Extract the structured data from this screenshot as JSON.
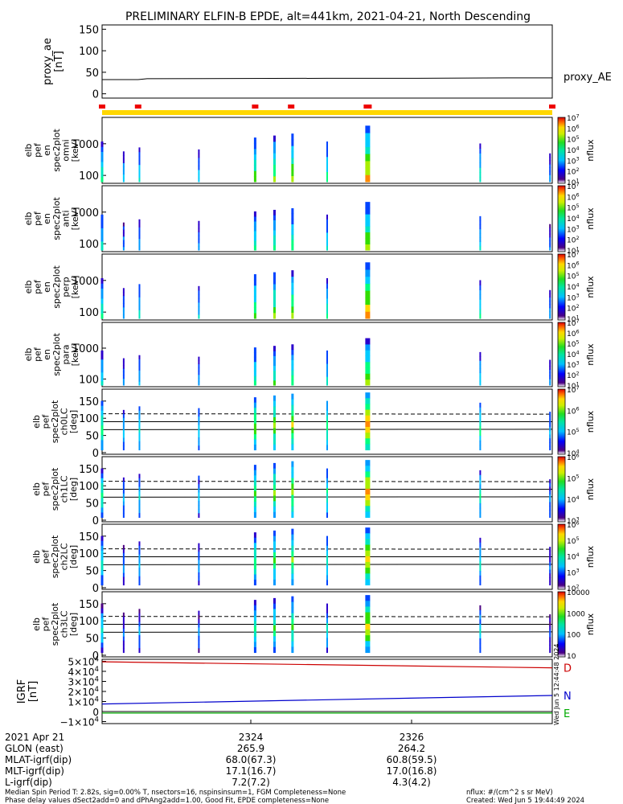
{
  "title": "PRELIMINARY ELFIN-B EPDE, alt=441km, 2021-04-21, North Descending",
  "colors": {
    "frame": "#000000",
    "flag_bar": "#ffd700",
    "flag_mark": "#ee0000",
    "grf_d": "#cc0000",
    "grf_n": "#0000cc",
    "grf_e": "#00aa00"
  },
  "chart_data": [
    {
      "type": "line",
      "panel": "proxy_ae",
      "ylabel": "proxy_ae [nT]",
      "yticks": [
        "150",
        "100",
        "50",
        "0"
      ],
      "ylim": [
        -10,
        160
      ],
      "legend": "proxy_AE",
      "x": [
        0,
        0.08,
        0.1,
        0.5,
        0.7,
        0.9,
        1.0
      ],
      "y": [
        33,
        33,
        35,
        36,
        36,
        37,
        37
      ]
    },
    {
      "type": "heatmap",
      "panel": "flags",
      "flag_marks": [
        0.0,
        0.08,
        0.34,
        0.42,
        0.59,
        1.0
      ]
    },
    {
      "type": "heatmap",
      "panel": "spec2plot_omni",
      "ylabel": [
        "elb",
        "pef",
        "en",
        "spec2plot",
        "omni",
        "[keV]"
      ],
      "yticks": [
        "1000",
        "100"
      ],
      "colorbar_label": "nflux",
      "colorbar_ticks": [
        "10^7",
        "10^6",
        "10^5",
        "10^4",
        "10^3",
        "10^2",
        "10^1"
      ]
    },
    {
      "type": "heatmap",
      "panel": "spec2plot_anti",
      "ylabel": [
        "elb",
        "pef",
        "en",
        "spec2plot",
        "anti",
        "[keV]"
      ],
      "yticks": [
        "1000",
        "100"
      ],
      "colorbar_label": "nflux",
      "colorbar_ticks": [
        "10^7",
        "10^6",
        "10^5",
        "10^4",
        "10^3",
        "10^2",
        "10^1"
      ]
    },
    {
      "type": "heatmap",
      "panel": "spec2plot_perp",
      "ylabel": [
        "elb",
        "pef",
        "en",
        "spec2plot",
        "perp",
        "[keV]"
      ],
      "yticks": [
        "1000",
        "100"
      ],
      "colorbar_label": "nflux",
      "colorbar_ticks": [
        "10^7",
        "10^6",
        "10^5",
        "10^4",
        "10^3",
        "10^2",
        "10^1"
      ]
    },
    {
      "type": "heatmap",
      "panel": "spec2plot_para",
      "ylabel": [
        "elb",
        "pef",
        "en",
        "spec2plot",
        "para",
        "[keV]"
      ],
      "yticks": [
        "1000",
        "100"
      ],
      "colorbar_label": "nflux",
      "colorbar_ticks": [
        "10^7",
        "10^6",
        "10^5",
        "10^4",
        "10^3",
        "10^2",
        "10^1"
      ]
    },
    {
      "type": "heatmap",
      "panel": "spec2plot_ch0LC",
      "ylabel": [
        "elb",
        "pef",
        "spec2plot",
        "ch0LC",
        "[deg]"
      ],
      "yticks": [
        "150",
        "100",
        "50",
        "0"
      ],
      "colorbar_label": "nflux",
      "colorbar_ticks": [
        "10^7",
        "10^6",
        "10^5",
        "10^4"
      ]
    },
    {
      "type": "heatmap",
      "panel": "spec2plot_ch1LC",
      "ylabel": [
        "elb",
        "pef",
        "spec2plot",
        "ch1LC",
        "[deg]"
      ],
      "yticks": [
        "150",
        "100",
        "50",
        "0"
      ],
      "colorbar_label": "nflux",
      "colorbar_ticks": [
        "10^6",
        "10^5",
        "10^4",
        "10^3"
      ]
    },
    {
      "type": "heatmap",
      "panel": "spec2plot_ch2LC",
      "ylabel": [
        "elb",
        "pef",
        "spec2plot",
        "ch2LC",
        "[deg]"
      ],
      "yticks": [
        "150",
        "100",
        "50",
        "0"
      ],
      "colorbar_label": "nflux",
      "colorbar_ticks": [
        "10^6",
        "10^5",
        "10^4",
        "10^3",
        "10^2"
      ]
    },
    {
      "type": "heatmap",
      "panel": "spec2plot_ch3LC",
      "ylabel": [
        "elb",
        "pef",
        "spec2plot",
        "ch3LC",
        "[deg]"
      ],
      "yticks": [
        "150",
        "100",
        "50",
        "0"
      ],
      "colorbar_label": "nflux",
      "colorbar_ticks": [
        "10000",
        "1000",
        "100",
        "10"
      ]
    },
    {
      "type": "line",
      "panel": "IGRF",
      "ylabel": "IGRF [nT]",
      "yticks": [
        "5×10^4",
        "4×10^4",
        "3×10^4",
        "2×10^4",
        "1×10^4",
        "0",
        "−1×10^4"
      ],
      "ylim": [
        -12000,
        52000
      ],
      "x": [
        0,
        1
      ],
      "series": [
        {
          "name": "D",
          "y": [
            49500,
            43500
          ]
        },
        {
          "name": "N",
          "y": [
            7500,
            16000
          ]
        },
        {
          "name": "E",
          "y": [
            -1500,
            -1500
          ]
        }
      ]
    }
  ],
  "spec_columns": [
    {
      "x": 0.0,
      "w": 3,
      "strength": 0.6
    },
    {
      "x": 0.048,
      "w": 2,
      "strength": 0.35
    },
    {
      "x": 0.083,
      "w": 2,
      "strength": 0.45
    },
    {
      "x": 0.215,
      "w": 2,
      "strength": 0.4
    },
    {
      "x": 0.34,
      "w": 3,
      "strength": 0.7
    },
    {
      "x": 0.383,
      "w": 3,
      "strength": 0.75
    },
    {
      "x": 0.423,
      "w": 3,
      "strength": 0.8
    },
    {
      "x": 0.5,
      "w": 2,
      "strength": 0.6
    },
    {
      "x": 0.59,
      "w": 6,
      "strength": 1.0
    },
    {
      "x": 0.84,
      "w": 2,
      "strength": 0.55
    },
    {
      "x": 0.995,
      "w": 2,
      "strength": 0.3
    }
  ],
  "xaxis": {
    "rows": [
      {
        "label": "2021 Apr 21",
        "v1": "2324",
        "v2": "2326"
      },
      {
        "label": "GLON (east)",
        "v1": "265.9",
        "v2": "264.2"
      },
      {
        "label": "MLAT-igrf(dip)",
        "v1": "68.0(67.3)",
        "v2": "60.8(59.5)"
      },
      {
        "label": "MLT-igrf(dip)",
        "v1": "17.1(16.7)",
        "v2": "17.0(16.8)"
      },
      {
        "label": "L-igrf(dip)",
        "v1": "7.2(7.2)",
        "v2": "4.3(4.2)"
      }
    ]
  },
  "footer": {
    "line1": "Median Spin Period T: 2.82s, sig=0.00% T, nsectors=16, nspinsinsum=1, FGM Completeness=None",
    "line2": "Phase delay values dSect2add=0 and dPhAng2add=1.00, Good Fit, EPDE completeness=None",
    "units": "nflux: #/(cm^2 s sr MeV)",
    "created": "Created: Wed Jun  5 19:44:49 2024",
    "side_stamp": "Wed Jun  5 12:44:48 2024"
  }
}
